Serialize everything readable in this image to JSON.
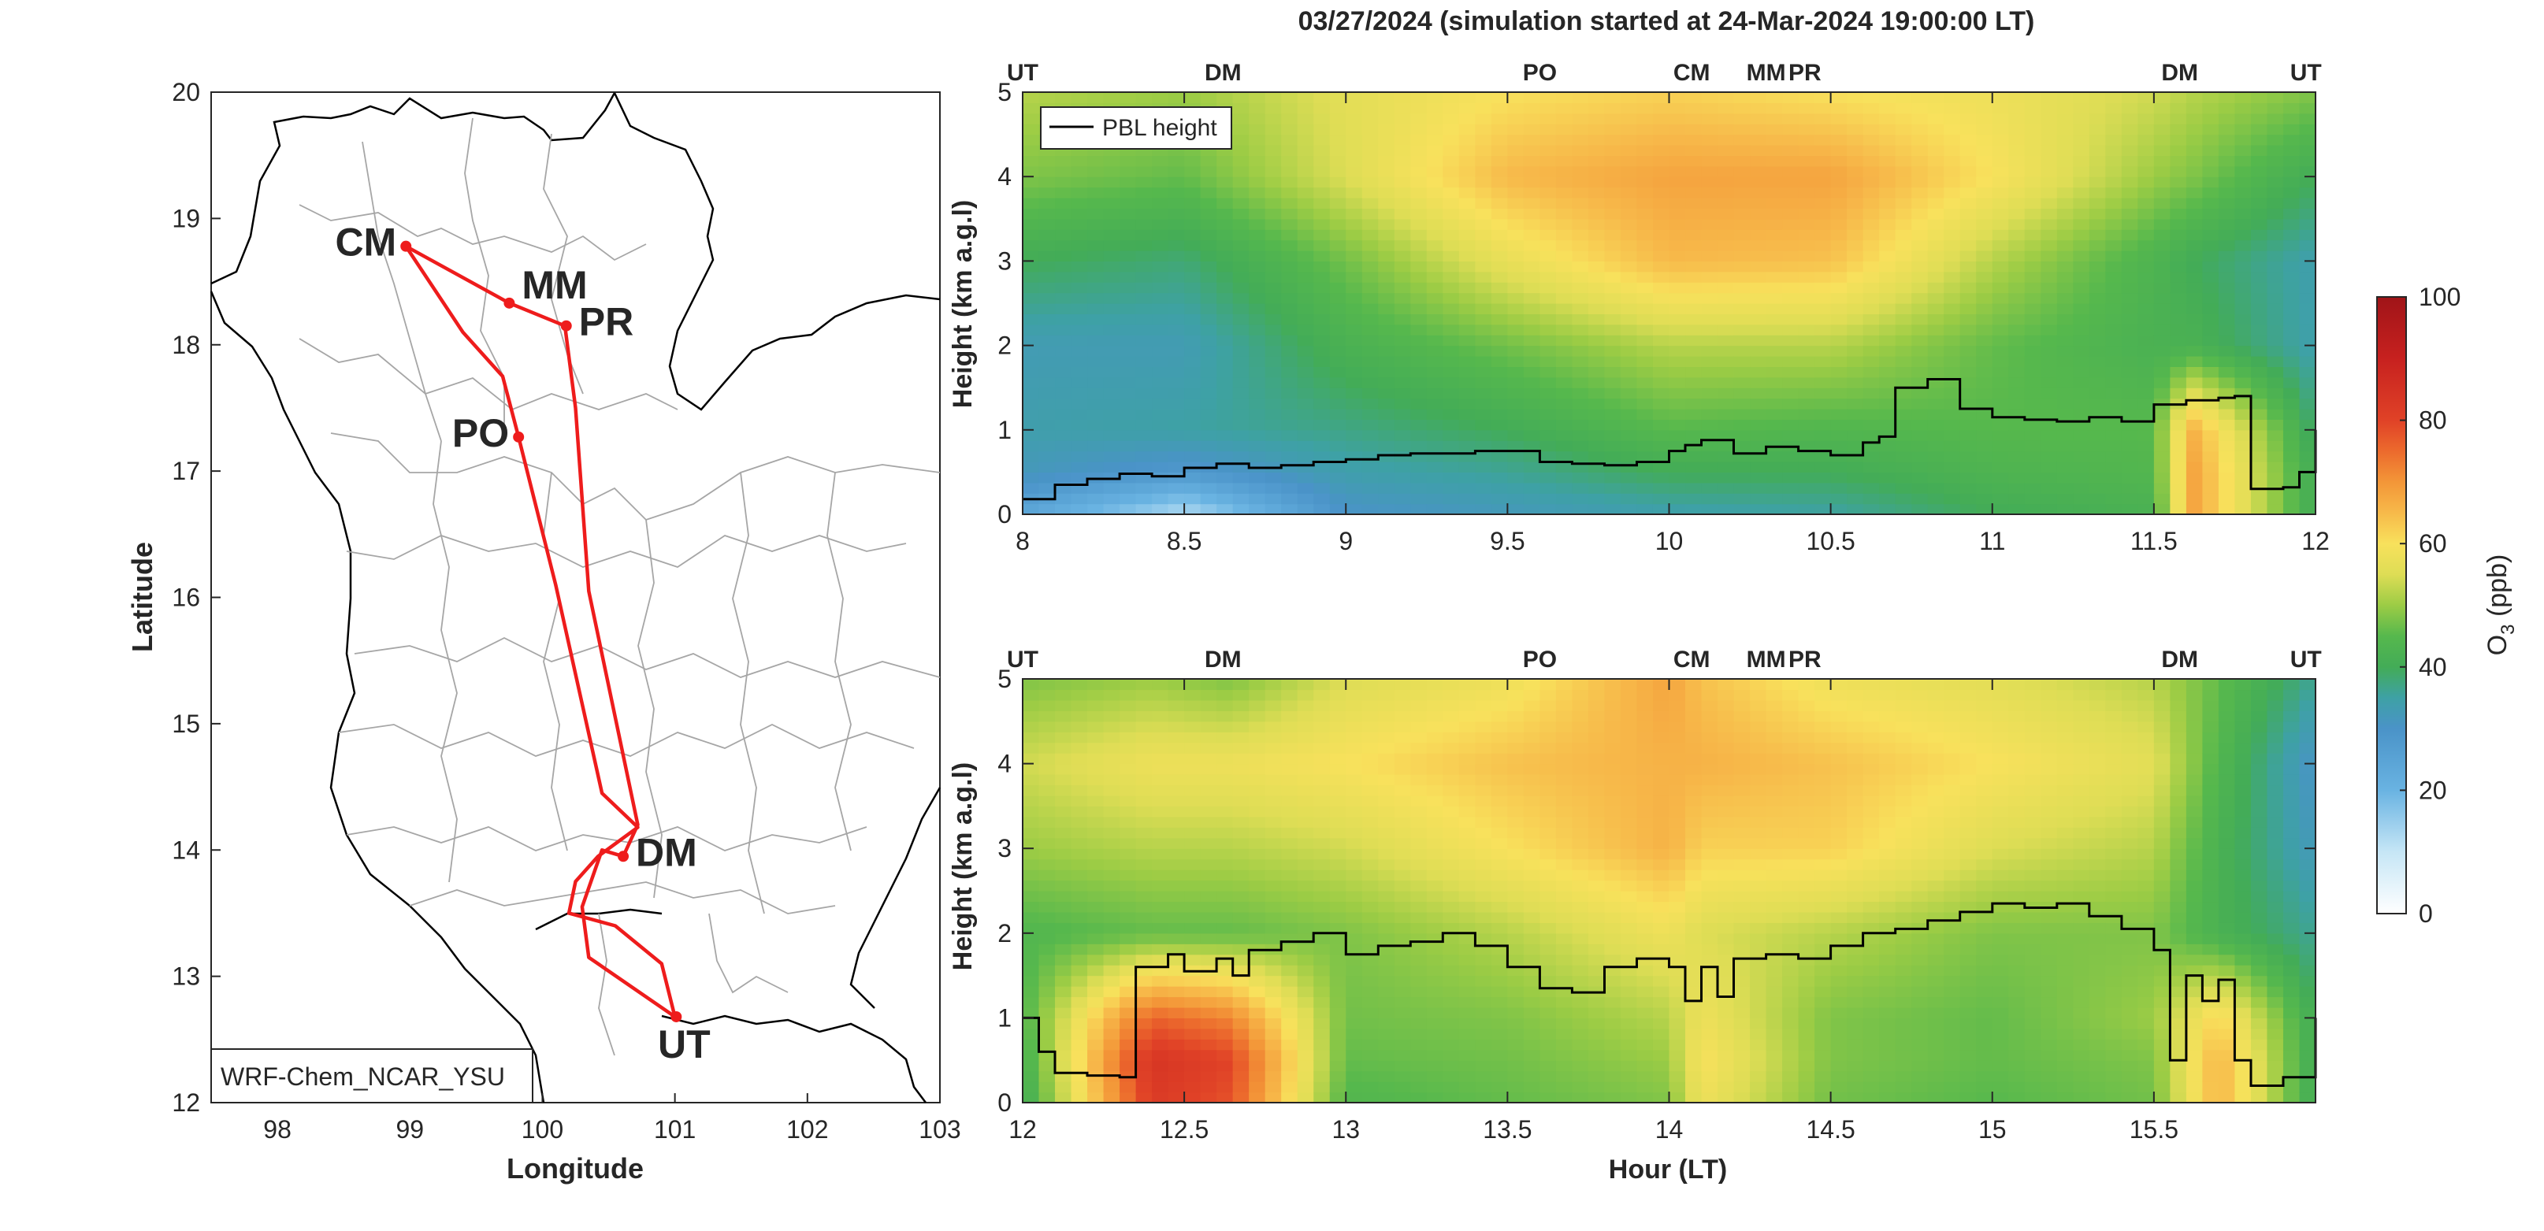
{
  "title": "03/27/2024 (simulation started at 24-Mar-2024 19:00:00 LT)",
  "map": {
    "xlabel": "Longitude",
    "ylabel": "Latitude",
    "xlim": [
      97.5,
      103
    ],
    "ylim": [
      12,
      20
    ],
    "xticks": [
      "98",
      "99",
      "100",
      "101",
      "102",
      "103"
    ],
    "yticks": [
      "12",
      "13",
      "14",
      "15",
      "16",
      "17",
      "18",
      "19",
      "20"
    ],
    "model_label": "WRF-Chem_NCAR_YSU",
    "route_color": "#ee1c1c",
    "stations": [
      {
        "code": "CM",
        "lon": 98.97,
        "lat": 18.78,
        "color": "#d95319"
      },
      {
        "code": "MM",
        "lon": 99.75,
        "lat": 18.33,
        "color": "#edb120"
      },
      {
        "code": "PR",
        "lon": 100.18,
        "lat": 18.15,
        "color": "#7e2f8e"
      },
      {
        "code": "PO",
        "lon": 99.82,
        "lat": 17.27,
        "color": "#77ac30"
      },
      {
        "code": "DM",
        "lon": 100.61,
        "lat": 13.95,
        "color": "#4dbeee"
      },
      {
        "code": "UT",
        "lon": 101.01,
        "lat": 12.68,
        "color": "#000000"
      }
    ],
    "route": [
      [
        101.0,
        12.68
      ],
      [
        100.35,
        13.15
      ],
      [
        100.3,
        13.55
      ],
      [
        100.4,
        13.85
      ],
      [
        100.45,
        14.0
      ],
      [
        100.61,
        13.95
      ],
      [
        100.72,
        14.2
      ],
      [
        100.35,
        16.05
      ],
      [
        100.25,
        17.5
      ],
      [
        100.17,
        18.15
      ],
      [
        99.75,
        18.33
      ],
      [
        98.97,
        18.78
      ],
      [
        99.4,
        18.1
      ],
      [
        99.7,
        17.75
      ],
      [
        99.82,
        17.27
      ],
      [
        100.1,
        16.1
      ],
      [
        100.45,
        14.45
      ],
      [
        100.72,
        14.18
      ],
      [
        100.42,
        13.95
      ],
      [
        100.25,
        13.75
      ],
      [
        100.2,
        13.5
      ],
      [
        100.55,
        13.4
      ],
      [
        100.9,
        13.1
      ],
      [
        101.0,
        12.68
      ]
    ]
  },
  "colorbar": {
    "label_main": "O",
    "label_sub": "3",
    "label_unit": " (ppb)",
    "ticks": [
      "0",
      "20",
      "40",
      "60",
      "80",
      "100"
    ],
    "range": [
      0,
      100
    ],
    "stops": [
      [
        0,
        "#ffffff"
      ],
      [
        10,
        "#c6e6f6"
      ],
      [
        20,
        "#69b3e2"
      ],
      [
        30,
        "#4a93c8"
      ],
      [
        35,
        "#3ea1a5"
      ],
      [
        40,
        "#43ac57"
      ],
      [
        45,
        "#56b84d"
      ],
      [
        50,
        "#9ccc45"
      ],
      [
        55,
        "#dedd55"
      ],
      [
        60,
        "#f8e15c"
      ],
      [
        65,
        "#f7b94a"
      ],
      [
        70,
        "#f39638"
      ],
      [
        75,
        "#ec6a2d"
      ],
      [
        80,
        "#e04227"
      ],
      [
        90,
        "#c7211f"
      ],
      [
        100,
        "#a01418"
      ]
    ]
  },
  "chart_data": [
    {
      "type": "heatmap",
      "title": "",
      "xlabel": "",
      "ylabel": "Height (km a.g.l)",
      "xlim": [
        8,
        12
      ],
      "ylim": [
        0,
        5
      ],
      "xticks": [
        "8",
        "8.5",
        "9",
        "9.5",
        "10",
        "10.5",
        "11",
        "11.5",
        "12"
      ],
      "yticks": [
        "0",
        "1",
        "2",
        "3",
        "4",
        "5"
      ],
      "z_label": "O3 (ppb)",
      "legend": {
        "entries": [
          "PBL height"
        ],
        "position": "top-left"
      },
      "station_markers": [
        {
          "code": "UT",
          "hour": 8.0,
          "color": "#000000"
        },
        {
          "code": "DM",
          "hour": 8.62,
          "color": "#4dbeee"
        },
        {
          "code": "PO",
          "hour": 9.6,
          "color": "#77ac30"
        },
        {
          "code": "CM",
          "hour": 10.07,
          "color": "#d95319"
        },
        {
          "code": "MM",
          "hour": 10.3,
          "color": "#edb120"
        },
        {
          "code": "PR",
          "hour": 10.42,
          "color": "#7e2f8e"
        },
        {
          "code": "DM",
          "hour": 11.58,
          "color": "#4dbeee"
        },
        {
          "code": "UT",
          "hour": 11.97,
          "color": "#000000"
        }
      ],
      "pbl_height": {
        "name": "PBL height",
        "x": [
          8.0,
          8.1,
          8.2,
          8.3,
          8.4,
          8.5,
          8.6,
          8.7,
          8.8,
          8.9,
          9.0,
          9.1,
          9.2,
          9.3,
          9.4,
          9.5,
          9.6,
          9.7,
          9.8,
          9.9,
          10.0,
          10.05,
          10.1,
          10.2,
          10.3,
          10.4,
          10.5,
          10.6,
          10.65,
          10.7,
          10.8,
          10.9,
          11.0,
          11.1,
          11.2,
          11.3,
          11.4,
          11.5,
          11.6,
          11.7,
          11.75,
          11.8,
          11.9,
          11.95,
          12.0
        ],
        "y": [
          0.18,
          0.35,
          0.42,
          0.48,
          0.45,
          0.55,
          0.6,
          0.55,
          0.58,
          0.62,
          0.65,
          0.7,
          0.72,
          0.72,
          0.75,
          0.75,
          0.62,
          0.6,
          0.58,
          0.62,
          0.75,
          0.82,
          0.88,
          0.72,
          0.8,
          0.75,
          0.7,
          0.85,
          0.92,
          1.5,
          1.6,
          1.25,
          1.15,
          1.12,
          1.1,
          1.15,
          1.1,
          1.3,
          1.35,
          1.38,
          1.4,
          0.3,
          0.32,
          0.5,
          1.0
        ]
      },
      "o3_field": {
        "description_of_structure": "time-height O3 concentration",
        "columns": [
          {
            "hour": 8.0,
            "profile_km": [
              0,
              0.5,
              1,
              2,
              3,
              4,
              5
            ],
            "o3_ppb": [
              24,
              32,
              34,
              33,
              40,
              48,
              52
            ]
          },
          {
            "hour": 8.5,
            "profile_km": [
              0,
              0.5,
              1,
              2,
              3,
              4,
              5
            ],
            "o3_ppb": [
              12,
              28,
              35,
              33,
              38,
              46,
              50
            ]
          },
          {
            "hour": 9.0,
            "profile_km": [
              0,
              0.5,
              1,
              2,
              3,
              4,
              5
            ],
            "o3_ppb": [
              30,
              34,
              37,
              42,
              47,
              55,
              56
            ]
          },
          {
            "hour": 9.5,
            "profile_km": [
              0,
              0.5,
              1,
              2,
              3,
              4,
              5
            ],
            "o3_ppb": [
              32,
              36,
              40,
              47,
              57,
              65,
              60
            ]
          },
          {
            "hour": 10.0,
            "profile_km": [
              0,
              0.5,
              1,
              2,
              3,
              4,
              5
            ],
            "o3_ppb": [
              34,
              40,
              45,
              52,
              65,
              68,
              62
            ]
          },
          {
            "hour": 10.5,
            "profile_km": [
              0,
              0.5,
              1,
              2,
              3,
              4,
              5
            ],
            "o3_ppb": [
              35,
              40,
              44,
              52,
              64,
              68,
              60
            ]
          },
          {
            "hour": 11.0,
            "profile_km": [
              0,
              0.5,
              1,
              2,
              3,
              4,
              5
            ],
            "o3_ppb": [
              40,
              43,
              45,
              46,
              52,
              60,
              58
            ]
          },
          {
            "hour": 11.5,
            "profile_km": [
              0,
              0.5,
              1,
              2,
              3,
              4,
              5
            ],
            "o3_ppb": [
              42,
              44,
              45,
              42,
              43,
              50,
              54
            ]
          },
          {
            "hour": 11.62,
            "profile_km": [
              0,
              0.5,
              1,
              2,
              3,
              4,
              5
            ],
            "o3_ppb": [
              68,
              68,
              66,
              42,
              40,
              48,
              52
            ]
          },
          {
            "hour": 12.0,
            "profile_km": [
              0,
              0.5,
              1,
              2,
              3,
              4,
              5
            ],
            "o3_ppb": [
              40,
              40,
              38,
              34,
              34,
              40,
              48
            ]
          }
        ]
      }
    },
    {
      "type": "heatmap",
      "title": "",
      "xlabel": "Hour (LT)",
      "ylabel": "Height (km a.g.l)",
      "xlim": [
        12,
        16
      ],
      "ylim": [
        0,
        5
      ],
      "xticks": [
        "12",
        "12.5",
        "13",
        "13.5",
        "14",
        "14.5",
        "15",
        "15.5"
      ],
      "yticks": [
        "0",
        "1",
        "2",
        "3",
        "4",
        "5"
      ],
      "z_label": "O3 (ppb)",
      "station_markers": [
        {
          "code": "UT",
          "hour": 12.0,
          "color": "#000000"
        },
        {
          "code": "DM",
          "hour": 12.62,
          "color": "#4dbeee"
        },
        {
          "code": "PO",
          "hour": 13.6,
          "color": "#77ac30"
        },
        {
          "code": "CM",
          "hour": 14.07,
          "color": "#d95319"
        },
        {
          "code": "MM",
          "hour": 14.3,
          "color": "#edb120"
        },
        {
          "code": "PR",
          "hour": 14.42,
          "color": "#7e2f8e"
        },
        {
          "code": "DM",
          "hour": 15.58,
          "color": "#4dbeee"
        },
        {
          "code": "UT",
          "hour": 15.97,
          "color": "#000000"
        }
      ],
      "pbl_height": {
        "name": "PBL height",
        "x": [
          12.0,
          12.05,
          12.1,
          12.2,
          12.3,
          12.35,
          12.45,
          12.5,
          12.6,
          12.65,
          12.7,
          12.8,
          12.9,
          13.0,
          13.1,
          13.2,
          13.3,
          13.4,
          13.5,
          13.6,
          13.7,
          13.8,
          13.9,
          14.0,
          14.05,
          14.1,
          14.15,
          14.2,
          14.3,
          14.4,
          14.5,
          14.6,
          14.7,
          14.8,
          14.9,
          15.0,
          15.1,
          15.2,
          15.3,
          15.4,
          15.5,
          15.55,
          15.6,
          15.65,
          15.7,
          15.75,
          15.8,
          15.9,
          15.95,
          16.0
        ],
        "y": [
          1.0,
          0.6,
          0.35,
          0.32,
          0.3,
          1.6,
          1.75,
          1.55,
          1.7,
          1.5,
          1.8,
          1.9,
          2.0,
          1.75,
          1.85,
          1.9,
          2.0,
          1.85,
          1.6,
          1.35,
          1.3,
          1.6,
          1.7,
          1.6,
          1.2,
          1.6,
          1.25,
          1.7,
          1.75,
          1.7,
          1.85,
          2.0,
          2.05,
          2.15,
          2.25,
          2.35,
          2.3,
          2.35,
          2.2,
          2.05,
          1.8,
          0.5,
          1.5,
          1.2,
          1.45,
          0.5,
          0.2,
          0.3,
          0.3,
          1.0
        ]
      },
      "o3_field": {
        "description_of_structure": "time-height O3 concentration",
        "columns": [
          {
            "hour": 12.0,
            "profile_km": [
              0,
              0.5,
              1,
              2,
              3,
              4,
              5
            ],
            "o3_ppb": [
              40,
              42,
              44,
              44,
              50,
              54,
              48
            ]
          },
          {
            "hour": 12.4,
            "profile_km": [
              0,
              0.5,
              1,
              2,
              3,
              4,
              5
            ],
            "o3_ppb": [
              82,
              84,
              76,
              46,
              52,
              58,
              50
            ]
          },
          {
            "hour": 12.64,
            "profile_km": [
              0,
              0.5,
              1,
              2,
              3,
              4,
              5
            ],
            "o3_ppb": [
              78,
              80,
              72,
              46,
              52,
              58,
              48
            ]
          },
          {
            "hour": 13.0,
            "profile_km": [
              0,
              0.5,
              1,
              2,
              3,
              4,
              5
            ],
            "o3_ppb": [
              44,
              46,
              47,
              48,
              54,
              60,
              55
            ]
          },
          {
            "hour": 13.5,
            "profile_km": [
              0,
              0.5,
              1,
              2,
              3,
              4,
              5
            ],
            "o3_ppb": [
              46,
              47,
              48,
              52,
              60,
              64,
              58
            ]
          },
          {
            "hour": 14.0,
            "profile_km": [
              0,
              0.5,
              1,
              2,
              3,
              4,
              5
            ],
            "o3_ppb": [
              48,
              50,
              52,
              58,
              66,
              66,
              68
            ]
          },
          {
            "hour": 14.1,
            "profile_km": [
              0,
              0.5,
              1,
              2,
              3,
              4,
              5
            ],
            "o3_ppb": [
              58,
              60,
              58,
              55,
              62,
              66,
              64
            ]
          },
          {
            "hour": 14.5,
            "profile_km": [
              0,
              0.5,
              1,
              2,
              3,
              4,
              5
            ],
            "o3_ppb": [
              47,
              48,
              48,
              52,
              62,
              64,
              58
            ]
          },
          {
            "hour": 15.0,
            "profile_km": [
              0,
              0.5,
              1,
              2,
              3,
              4,
              5
            ],
            "o3_ppb": [
              45,
              46,
              46,
              48,
              55,
              60,
              56
            ]
          },
          {
            "hour": 15.5,
            "profile_km": [
              0,
              0.5,
              1,
              2,
              3,
              4,
              5
            ],
            "o3_ppb": [
              47,
              48,
              50,
              48,
              52,
              56,
              52
            ]
          },
          {
            "hour": 15.7,
            "profile_km": [
              0,
              0.5,
              1,
              2,
              3,
              4,
              5
            ],
            "o3_ppb": [
              66,
              66,
              62,
              42,
              42,
              44,
              46
            ]
          },
          {
            "hour": 16.0,
            "profile_km": [
              0,
              0.5,
              1,
              2,
              3,
              4,
              5
            ],
            "o3_ppb": [
              40,
              40,
              40,
              36,
              32,
              30,
              36
            ]
          }
        ]
      }
    }
  ]
}
